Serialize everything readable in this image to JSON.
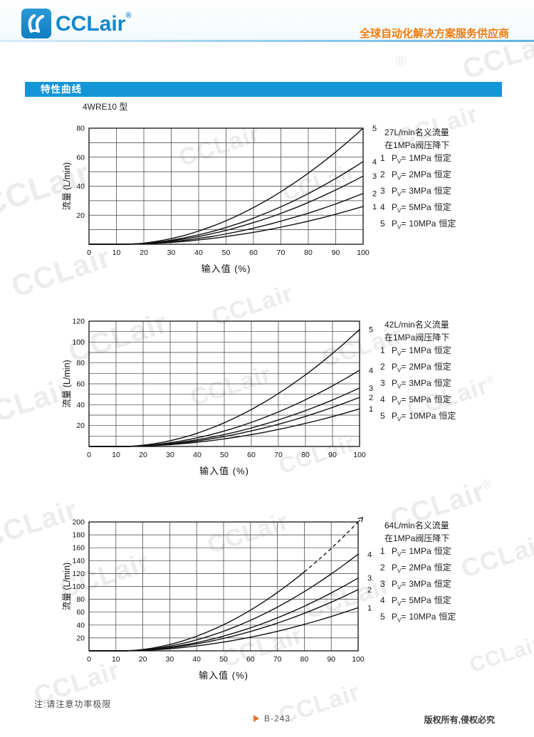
{
  "header": {
    "logo_text": "CCLair",
    "logo_reg": "®",
    "tagline": "全球自动化解决方案服务供应商",
    "logo_color": "#1287cc",
    "tagline_color": "#f07c10"
  },
  "section_banner": {
    "label": "特性曲线",
    "color": "#1495d8"
  },
  "model_label": "4WRE10 型",
  "note": "注:请注意功率极限",
  "footer": {
    "marker_icon": "▶",
    "page_number": "B-243",
    "copyright": "版权所有,侵权必究"
  },
  "watermark": {
    "text": "CCLair",
    "reg": "®"
  },
  "chart_data": [
    {
      "type": "line",
      "title_lines": [
        "27L/min名义流量",
        "在1MPa阀压降下"
      ],
      "xlabel": "输入值  (%)",
      "ylabel": "流量 (L/min)",
      "xlim": [
        0,
        100
      ],
      "ylim": [
        0,
        80
      ],
      "xticks": [
        0,
        10,
        20,
        30,
        40,
        50,
        60,
        70,
        80,
        90,
        100
      ],
      "yticks": [
        20,
        40,
        60,
        80
      ],
      "ygrid_step": 10,
      "grid": true,
      "legend_position": "right",
      "legend": {
        "pv_prefix": "P",
        "pv_sub": "V",
        "eq": "=",
        "suffix": "恒定"
      },
      "x": [
        0,
        5,
        10,
        15,
        20,
        25,
        30,
        35,
        40,
        45,
        50,
        55,
        60,
        65,
        70,
        75,
        80,
        85,
        90,
        95,
        100
      ],
      "series": [
        {
          "name": "1",
          "pressure": "1MPa",
          "values": [
            0,
            0,
            0,
            0,
            0.3,
            0.7,
            1.3,
            2,
            3,
            4,
            5.3,
            6.7,
            8.2,
            9.9,
            11.8,
            13.8,
            15.9,
            18.2,
            20.7,
            23.3,
            26
          ]
        },
        {
          "name": "2",
          "pressure": "2MPa",
          "values": [
            0,
            0,
            0,
            0.1,
            0.4,
            0.9,
            1.7,
            2.7,
            4,
            5.4,
            7.1,
            9,
            11.1,
            13.4,
            15.9,
            18.6,
            21.4,
            24.5,
            27.8,
            31.3,
            35
          ]
        },
        {
          "name": "3",
          "pressure": "3MPa",
          "values": [
            0,
            0,
            0,
            0.1,
            0.5,
            1.2,
            2.3,
            3.7,
            5.3,
            7.3,
            9.5,
            12.1,
            14.9,
            17.9,
            21.3,
            24.9,
            28.8,
            33,
            37.4,
            42.1,
            47
          ]
        },
        {
          "name": "4",
          "pressure": "5MPa",
          "values": [
            0,
            0,
            0,
            0.1,
            0.6,
            1.5,
            2.8,
            4.5,
            6.5,
            8.8,
            11.6,
            14.6,
            18,
            21.8,
            25.8,
            30.2,
            34.9,
            40,
            45.3,
            51,
            57
          ]
        },
        {
          "name": "5",
          "pressure": "10MPa",
          "values": [
            0,
            0,
            0,
            0.1,
            0.8,
            2.1,
            3.9,
            6.2,
            9.1,
            12.4,
            16.2,
            20.5,
            25.3,
            30.5,
            36.2,
            42.4,
            49,
            56.1,
            63.6,
            71.6,
            80
          ]
        }
      ]
    },
    {
      "type": "line",
      "title_lines": [
        "42L/min名义流量",
        "在1MPa阀压降下"
      ],
      "xlabel": "输入值  (%)",
      "ylabel": "流量 (L/min)",
      "xlim": [
        0,
        100
      ],
      "ylim": [
        0,
        120
      ],
      "xticks": [
        0,
        10,
        20,
        30,
        40,
        50,
        60,
        70,
        80,
        90,
        100
      ],
      "yticks": [
        20,
        40,
        60,
        80,
        100,
        120
      ],
      "ygrid_step": 10,
      "grid": true,
      "legend_position": "right",
      "legend": {
        "pv_prefix": "P",
        "pv_sub": "V",
        "eq": "=",
        "suffix": "恒定"
      },
      "x": [
        0,
        5,
        10,
        15,
        20,
        25,
        30,
        35,
        40,
        45,
        50,
        55,
        60,
        65,
        70,
        75,
        80,
        85,
        90,
        95,
        100
      ],
      "series": [
        {
          "name": "1",
          "pressure": "1MPa",
          "values": [
            0,
            0,
            0,
            0.1,
            0.4,
            1,
            1.8,
            2.8,
            4.1,
            5.6,
            7.3,
            9.2,
            11.4,
            13.7,
            16.3,
            19.1,
            22.1,
            25.2,
            28.6,
            32.2,
            36
          ]
        },
        {
          "name": "2",
          "pressure": "2MPa",
          "values": [
            0,
            0,
            0,
            0.1,
            0.5,
            1.2,
            2.3,
            3.7,
            5.3,
            7.3,
            9.5,
            12.1,
            14.9,
            17.9,
            21.3,
            24.9,
            28.8,
            33,
            37.4,
            42.1,
            47
          ]
        },
        {
          "name": "3",
          "pressure": "3MPa",
          "values": [
            0,
            0,
            0,
            0.1,
            0.6,
            1.5,
            2.7,
            4.4,
            6.4,
            8.7,
            11.4,
            14.4,
            17.7,
            21.4,
            25.4,
            29.7,
            34.3,
            39.3,
            44.5,
            50.1,
            56
          ]
        },
        {
          "name": "4",
          "pressure": "5MPa",
          "values": [
            0,
            0,
            0,
            0.1,
            0.8,
            1.9,
            3.6,
            5.7,
            8.3,
            11.3,
            14.8,
            18.7,
            23.1,
            27.9,
            33.1,
            38.7,
            44.7,
            51.2,
            58,
            65.3,
            73
          ]
        },
        {
          "name": "5",
          "pressure": "10MPa",
          "values": [
            0,
            0,
            0,
            0.2,
            1.2,
            3,
            5.5,
            8.7,
            12.7,
            17.4,
            22.7,
            28.7,
            35.4,
            42.7,
            50.7,
            59.4,
            68.6,
            78.5,
            89.1,
            100.2,
            112
          ]
        }
      ]
    },
    {
      "type": "line",
      "title_lines": [
        "64L/min名义流量",
        "在1MPa阀压降下"
      ],
      "xlabel": "输入值  (%)",
      "ylabel": "流量 (L/min)",
      "xlim": [
        0,
        100
      ],
      "ylim": [
        0,
        200
      ],
      "xticks": [
        0,
        10,
        20,
        30,
        40,
        50,
        60,
        70,
        80,
        90,
        100
      ],
      "yticks": [
        20,
        40,
        60,
        80,
        100,
        120,
        140,
        160,
        180,
        200
      ],
      "ygrid_step": 20,
      "grid": true,
      "legend_position": "right",
      "legend": {
        "pv_prefix": "P",
        "pv_sub": "V",
        "eq": "=",
        "suffix": "恒定"
      },
      "x": [
        0,
        5,
        10,
        15,
        20,
        25,
        30,
        35,
        40,
        45,
        50,
        55,
        60,
        65,
        70,
        75,
        80,
        85,
        90,
        95,
        100
      ],
      "series": [
        {
          "name": "1",
          "pressure": "1MPa",
          "values": [
            0,
            0,
            0,
            0.1,
            0.7,
            1.8,
            3.3,
            5.2,
            7.6,
            10.4,
            13.6,
            17.2,
            21.2,
            25.6,
            30.3,
            35.5,
            41.1,
            47,
            53.3,
            60,
            67
          ]
        },
        {
          "name": "2",
          "pressure": "2MPa",
          "values": [
            0,
            0,
            0,
            0.2,
            1,
            2.5,
            4.7,
            7.4,
            10.8,
            14.7,
            19.3,
            24.4,
            30,
            36.3,
            43,
            50.4,
            58.2,
            66.6,
            75.5,
            85,
            95
          ]
        },
        {
          "name": "3",
          "pressure": "3MPa",
          "values": [
            0,
            0,
            0,
            0.2,
            1.2,
            3,
            5.5,
            8.8,
            12.8,
            17.5,
            22.9,
            29,
            35.7,
            43.1,
            51.2,
            59.9,
            69.2,
            79.2,
            89.9,
            101.1,
            113
          ]
        },
        {
          "name": "4",
          "pressure": "5MPa",
          "values": [
            0,
            0,
            0,
            0.2,
            1.6,
            4,
            7.4,
            11.7,
            17,
            23.3,
            30.4,
            38.5,
            47.4,
            57.2,
            67.9,
            79.5,
            91.9,
            105.2,
            119.3,
            134.2,
            150
          ]
        },
        {
          "name": "5",
          "pressure": "10MPa",
          "dash_from": 80,
          "arrow": true,
          "no_right_label": true,
          "values": [
            0,
            0,
            0,
            0.3,
            2.1,
            5.3,
            9.8,
            15.6,
            22.7,
            31,
            40.5,
            51.3,
            63.2,
            76.3,
            90.6,
            106,
            122.5,
            140.2,
            159,
            179,
            200
          ]
        }
      ]
    }
  ]
}
